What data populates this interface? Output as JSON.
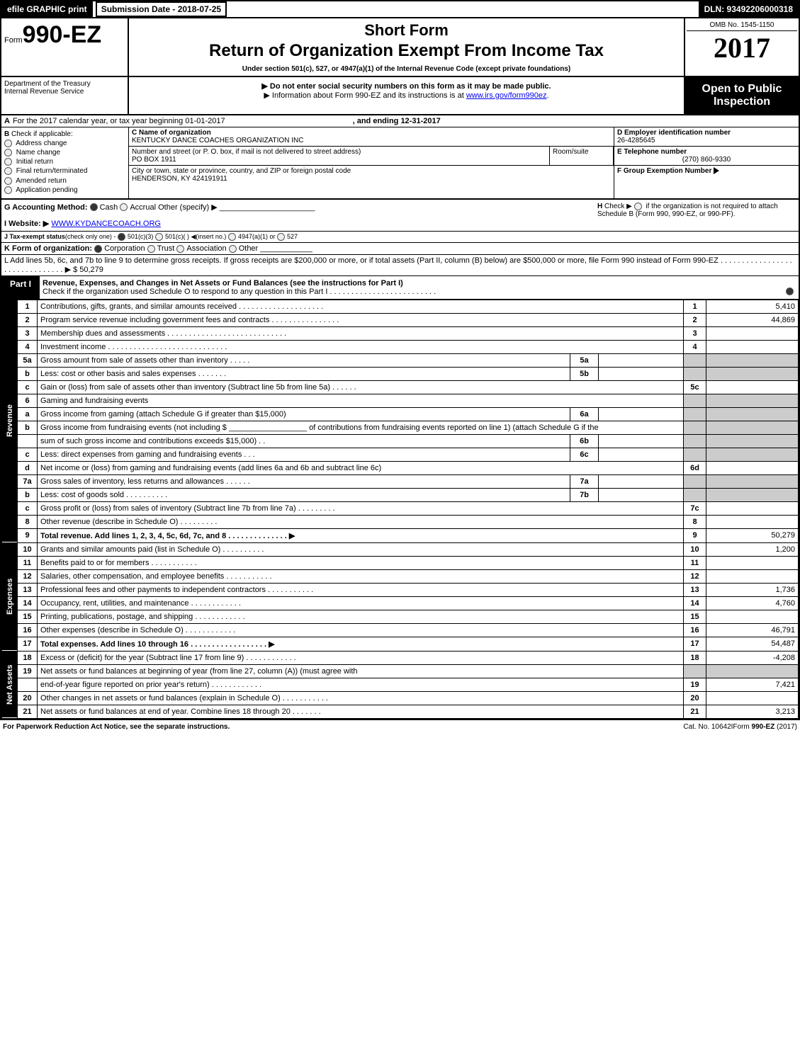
{
  "topbar": {
    "efile_label": "efile GRAPHIC print",
    "submission_label": "Submission Date - 2018-07-25",
    "dln": "DLN: 93492206000318"
  },
  "header": {
    "form_prefix": "Form",
    "form_no": "990-EZ",
    "short": "Short Form",
    "main": "Return of Organization Exempt From Income Tax",
    "sub": "Under section 501(c), 527, or 4947(a)(1) of the Internal Revenue Code (except private foundations)",
    "omb": "OMB No. 1545-1150",
    "year": "2017"
  },
  "header2": {
    "dept1": "Department of the Treasury",
    "dept2": "Internal Revenue Service",
    "instr1": "▶ Do not enter social security numbers on this form as it may be made public.",
    "instr2_pre": "▶ Information about Form 990-EZ and its instructions is at ",
    "instr2_link": "www.irs.gov/form990ez",
    "instr2_post": ".",
    "open1": "Open to Public",
    "open2": "Inspection"
  },
  "sectionA": {
    "a_label": "A",
    "a_text": "For the 2017 calendar year, or tax year beginning 01-01-2017",
    "a_end": ", and ending 12-31-2017"
  },
  "checkboxes": {
    "b_label": "B",
    "b_text": "Check if applicable:",
    "items": [
      {
        "label": "Address change"
      },
      {
        "label": "Name change"
      },
      {
        "label": "Initial return"
      },
      {
        "label": "Final return/terminated"
      },
      {
        "label": "Amended return"
      },
      {
        "label": "Application pending"
      }
    ]
  },
  "org": {
    "c_label": "C Name of organization",
    "c_name": "KENTUCKY DANCE COACHES ORGANIZATION INC",
    "addr_label": "Number and street (or P. O. box, if mail is not delivered to street address)",
    "addr": "PO BOX 1911",
    "room_label": "Room/suite",
    "city_label": "City or town, state or province, country, and ZIP or foreign postal code",
    "city": "HENDERSON, KY  424191911"
  },
  "rightinfo": {
    "d_label": "D Employer identification number",
    "d_val": "26-4285645",
    "e_label": "E Telephone number",
    "e_val": "(270) 860-9330",
    "f_label": "F Group Exemption Number",
    "f_arrow": "▶"
  },
  "lineG": {
    "g_label": "G Accounting Method:",
    "cash": "Cash",
    "accrual": "Accrual",
    "other": "Other (specify) ▶",
    "h_label": "H",
    "h_text1": "Check ▶",
    "h_text2": "if the organization is not required to attach Schedule B (Form 990, 990-EZ, or 990-PF)."
  },
  "lineI": {
    "label": "I Website: ▶",
    "url": "WWW.KYDANCECOACH.ORG"
  },
  "lineJ": {
    "label": "J Tax-exempt status",
    "paren": "(check only one) -",
    "o1": "501(c)(3)",
    "o2": "501(c)( )",
    "o2b": "◀(insert no.)",
    "o3": "4947(a)(1) or",
    "o4": "527"
  },
  "lineK": {
    "label": "K Form of organization:",
    "o1": "Corporation",
    "o2": "Trust",
    "o3": "Association",
    "o4": "Other"
  },
  "lineL": {
    "text": "L Add lines 5b, 6c, and 7b to line 9 to determine gross receipts. If gross receipts are $200,000 or more, or if total assets (Part II, column (B) below) are $500,000 or more, file Form 990 instead of Form 990-EZ  .  .  .  .  .  .  .  .  .  .  .  .  .  .  .  .  .  .  .  .  .  .  .  .  .  .  .  .  .  .  .  ▶ $ 50,279"
  },
  "partI": {
    "label": "Part I",
    "title": "Revenue, Expenses, and Changes in Net Assets or Fund Balances (see the instructions for Part I)",
    "checknote": "Check if the organization used Schedule O to respond to any question in this Part I .  .  .  .  .  .  .  .  .  .  .  .  .  .  .  .  .  .  .  .  .  .  .  .  ."
  },
  "sections": {
    "revenue": "Revenue",
    "expenses": "Expenses",
    "netassets": "Net Assets"
  },
  "rows": [
    {
      "sec": "rev",
      "num": "1",
      "desc": "Contributions, gifts, grants, and similar amounts received  .  .  .  .  .  .  .  .  .  .  .  .  .  .  .  .  .  .  .  .",
      "lnum": "1",
      "val": "5,410"
    },
    {
      "sec": "rev",
      "num": "2",
      "desc": "Program service revenue including government fees and contracts  .  .  .  .  .  .  .  .  .  .  .  .  .  .  .  .",
      "lnum": "2",
      "val": "44,869"
    },
    {
      "sec": "rev",
      "num": "3",
      "desc": "Membership dues and assessments  .  .  .  .  .  .  .  .  .  .  .  .  .  .  .  .  .  .  .  .  .  .  .  .  .  .  .  .",
      "lnum": "3",
      "val": ""
    },
    {
      "sec": "rev",
      "num": "4",
      "desc": "Investment income  .  .  .  .  .  .  .  .  .  .  .  .  .  .  .  .  .  .  .  .  .  .  .  .  .  .  .  .",
      "lnum": "4",
      "val": ""
    },
    {
      "sec": "rev",
      "num": "5a",
      "desc": "Gross amount from sale of assets other than inventory  .  .  .  .  .",
      "sub": "5a",
      "subval": "",
      "grey": true
    },
    {
      "sec": "rev",
      "num": "b",
      "desc": "Less: cost or other basis and sales expenses  .  .  .  .  .  .  .",
      "sub": "5b",
      "subval": "",
      "grey": true
    },
    {
      "sec": "rev",
      "num": "c",
      "desc": "Gain or (loss) from sale of assets other than inventory (Subtract line 5b from line 5a)          .    .    .    .    .    .",
      "lnum": "5c",
      "val": ""
    },
    {
      "sec": "rev",
      "num": "6",
      "desc": "Gaming and fundraising events",
      "grey": true
    },
    {
      "sec": "rev",
      "num": "a",
      "desc": "Gross income from gaming (attach Schedule G if greater than $15,000)",
      "sub": "6a",
      "subval": "",
      "grey": true
    },
    {
      "sec": "rev",
      "num": "b",
      "desc": "Gross income from fundraising events (not including $ __________________ of contributions from fundraising events reported on line 1) (attach Schedule G if the",
      "nobox": true,
      "grey": true
    },
    {
      "sec": "rev",
      "num": "",
      "desc": "sum of such gross income and contributions exceeds $15,000)         .    .",
      "sub": "6b",
      "subval": "",
      "grey": true
    },
    {
      "sec": "rev",
      "num": "c",
      "desc": "Less: direct expenses from gaming and fundraising events           .    .    .",
      "sub": "6c",
      "subval": "",
      "grey": true
    },
    {
      "sec": "rev",
      "num": "d",
      "desc": "Net income or (loss) from gaming and fundraising events (add lines 6a and 6b and subtract line 6c)",
      "lnum": "6d",
      "val": ""
    },
    {
      "sec": "rev",
      "num": "7a",
      "desc": "Gross sales of inventory, less returns and allowances           .    .    .    .    .    .",
      "sub": "7a",
      "subval": "",
      "grey": true
    },
    {
      "sec": "rev",
      "num": "b",
      "desc": "Less: cost of goods sold                                    .    .    .    .    .    .    .    .    .    .",
      "sub": "7b",
      "subval": "",
      "grey": true
    },
    {
      "sec": "rev",
      "num": "c",
      "desc": "Gross profit or (loss) from sales of inventory (Subtract line 7b from line 7a)          .    .    .    .    .    .    .    .    .",
      "lnum": "7c",
      "val": ""
    },
    {
      "sec": "rev",
      "num": "8",
      "desc": "Other revenue (describe in Schedule O)          .    .    .    .    .    .    .    .    .",
      "lnum": "8",
      "val": ""
    },
    {
      "sec": "rev",
      "num": "9",
      "desc": "Total revenue. Add lines 1, 2, 3, 4, 5c, 6d, 7c, and 8          .    .    .    .    .    .    .    .    .    .    .    .    .    .    ▶",
      "bold": true,
      "lnum": "9",
      "val": "50,279"
    },
    {
      "sec": "exp",
      "num": "10",
      "desc": "Grants and similar amounts paid (list in Schedule O)          .    .    .    .    .    .    .    .    .    .",
      "lnum": "10",
      "val": "1,200"
    },
    {
      "sec": "exp",
      "num": "11",
      "desc": "Benefits paid to or for members         .    .    .    .    .    .    .    .    .    .    .",
      "lnum": "11",
      "val": ""
    },
    {
      "sec": "exp",
      "num": "12",
      "desc": "Salaries, other compensation, and employee benefits         .    .    .    .    .    .    .    .    .    .    .",
      "lnum": "12",
      "val": ""
    },
    {
      "sec": "exp",
      "num": "13",
      "desc": "Professional fees and other payments to independent contractors         .    .    .    .    .    .    .    .    .    .    .",
      "lnum": "13",
      "val": "1,736"
    },
    {
      "sec": "exp",
      "num": "14",
      "desc": "Occupancy, rent, utilities, and maintenance         .    .    .    .    .    .    .    .    .    .    .    .",
      "lnum": "14",
      "val": "4,760"
    },
    {
      "sec": "exp",
      "num": "15",
      "desc": "Printing, publications, postage, and shipping         .    .    .    .    .    .    .    .    .    .    .    .",
      "lnum": "15",
      "val": ""
    },
    {
      "sec": "exp",
      "num": "16",
      "desc": "Other expenses (describe in Schedule O)         .    .    .    .    .    .    .    .    .    .    .    .",
      "lnum": "16",
      "val": "46,791"
    },
    {
      "sec": "exp",
      "num": "17",
      "desc": "Total expenses. Add lines 10 through 16         .    .    .    .    .    .    .    .    .    .    .    .    .    .    .    .    .    .    ▶",
      "bold": true,
      "lnum": "17",
      "val": "54,487"
    },
    {
      "sec": "net",
      "num": "18",
      "desc": "Excess or (deficit) for the year (Subtract line 17 from line 9)         .    .    .    .    .    .    .    .    .    .    .    .",
      "lnum": "18",
      "val": "-4,208"
    },
    {
      "sec": "net",
      "num": "19",
      "desc": "Net assets or fund balances at beginning of year (from line 27, column (A)) (must agree with",
      "grey": true
    },
    {
      "sec": "net",
      "num": "",
      "desc": "end-of-year figure reported on prior year's return)         .    .    .    .    .    .    .    .    .    .    .    .",
      "lnum": "19",
      "val": "7,421"
    },
    {
      "sec": "net",
      "num": "20",
      "desc": "Other changes in net assets or fund balances (explain in Schedule O)         .    .    .    .    .    .    .    .    .    .    .",
      "lnum": "20",
      "val": ""
    },
    {
      "sec": "net",
      "num": "21",
      "desc": "Net assets or fund balances at end of year. Combine lines 18 through 20              .    .    .    .    .    .    .",
      "lnum": "21",
      "val": "3,213"
    }
  ],
  "footer": {
    "left": "For Paperwork Reduction Act Notice, see the separate instructions.",
    "mid": "Cat. No. 10642I",
    "right_pre": "Form ",
    "right_bold": "990-EZ",
    "right_post": " (2017)"
  },
  "colors": {
    "black": "#000000",
    "white": "#ffffff",
    "grey": "#cccccc",
    "link": "#0000ee"
  }
}
